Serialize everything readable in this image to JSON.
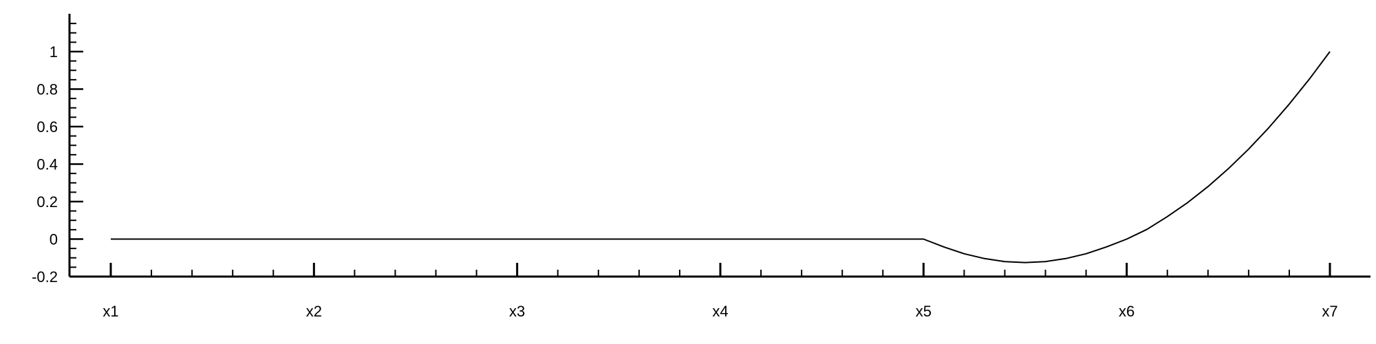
{
  "chart_data": {
    "type": "line",
    "title": "",
    "xlabel": "",
    "ylabel": "",
    "x_tick_labels": [
      "x1",
      "x2",
      "x3",
      "x4",
      "x5",
      "x6",
      "x7"
    ],
    "y_tick_labels": [
      "-0.2",
      "0",
      "0.2",
      "0.4",
      "0.6",
      "0.8",
      "1"
    ],
    "y_ticks": [
      -0.2,
      0,
      0.2,
      0.4,
      0.6,
      0.8,
      1
    ],
    "xlim": [
      1,
      7
    ],
    "ylim": [
      -0.2,
      1.2
    ],
    "grid": false,
    "legend": "none",
    "series": [
      {
        "color": "#000000",
        "points": [
          [
            1,
            0
          ],
          [
            2,
            0
          ],
          [
            3,
            0
          ],
          [
            4,
            0
          ],
          [
            5,
            0
          ],
          [
            5.1,
            -0.042
          ],
          [
            5.2,
            -0.078
          ],
          [
            5.3,
            -0.104
          ],
          [
            5.4,
            -0.12
          ],
          [
            5.5,
            -0.125
          ],
          [
            5.6,
            -0.12
          ],
          [
            5.7,
            -0.104
          ],
          [
            5.8,
            -0.078
          ],
          [
            5.9,
            -0.042
          ],
          [
            6,
            0
          ],
          [
            6.1,
            0.052
          ],
          [
            6.2,
            0.12
          ],
          [
            6.3,
            0.195
          ],
          [
            6.4,
            0.28
          ],
          [
            6.5,
            0.375
          ],
          [
            6.6,
            0.48
          ],
          [
            6.7,
            0.595
          ],
          [
            6.8,
            0.72
          ],
          [
            6.9,
            0.855
          ],
          [
            7,
            1
          ]
        ]
      }
    ]
  }
}
